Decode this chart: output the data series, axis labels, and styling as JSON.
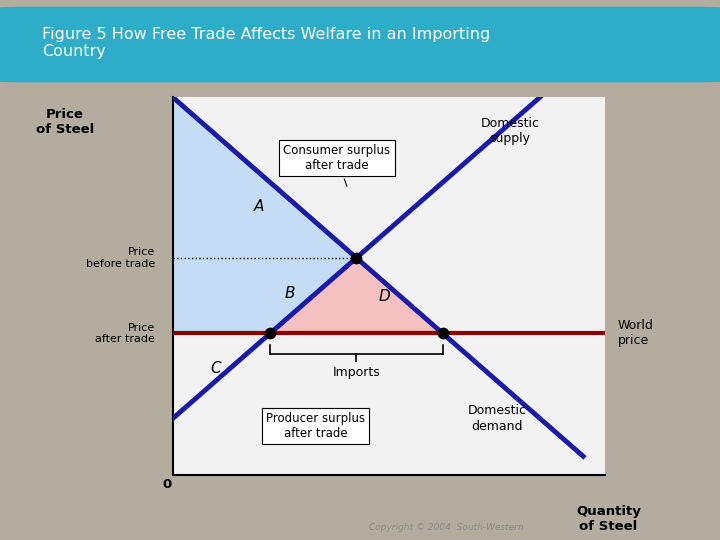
{
  "title": "Figure 5 How Free Trade Affects Welfare in an Importing\nCountry",
  "title_bg_color": "#2eadc9",
  "title_text_color": "white",
  "fig_bg_color": "#b5aca0",
  "plot_bg_color": "#ffffff",
  "plot_area_color": "#f2f2f2",
  "ylabel": "Price\nof Steel",
  "xlabel": "Quantity\nof Steel",
  "supply_color": "#1a1aaa",
  "demand_color": "#1a1aaa",
  "world_price_color": "#8b0000",
  "world_price_linewidth": 3.0,
  "supply_linewidth": 3.5,
  "demand_linewidth": 3.5,
  "dot_color": "black",
  "consumer_surplus_color": "#c5dcf5",
  "producer_surplus_color": "#f5c0c0",
  "label_A": "A",
  "label_B": "B",
  "label_C": "C",
  "label_D": "D",
  "annotation_consumer": "Consumer surplus\nafter trade",
  "annotation_producer": "Producer surplus\nafter trade",
  "annotation_domestic_supply": "Domestic\nsupply",
  "annotation_domestic_demand": "Domestic\ndemand",
  "annotation_world_price": "World\nprice",
  "annotation_imports": "Imports",
  "annotation_price_before": "Price\nbefore trade",
  "annotation_price_after": "Price\nafter trade",
  "copyright": "Copyright © 2004  South-Western"
}
